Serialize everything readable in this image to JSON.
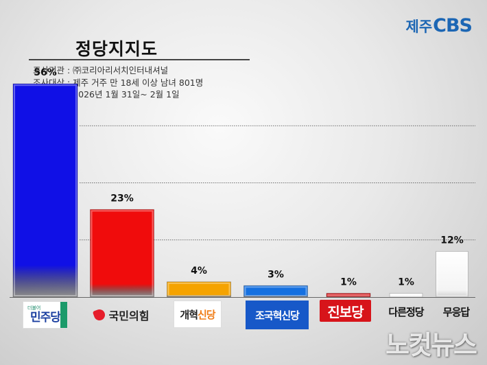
{
  "brand": {
    "prefix": "제주",
    "name": "CBS"
  },
  "title": "정당지지도",
  "survey": {
    "agency": "조사기관 : ㈜코리아리서치인터내셔널",
    "target": "조사대상 : 제주 거주 만 18세 이상 남녀 801명",
    "period": "조사기간 : 2026년 1월 31일~ 2월 1일"
  },
  "parties": {
    "minjoo_small": "더불어",
    "minjoo_large": "민주당",
    "ppp": "국민의힘",
    "reform_a": "개혁",
    "reform_b": "신당",
    "rebuild": "조국혁신당",
    "progress": "진보당",
    "other": "다른정당",
    "none": "무응답"
  },
  "watermark": "노컷뉴스",
  "colors": {
    "minjoo": "#1010e6",
    "ppp": "#f00c0c",
    "reform": "#f5a300",
    "rebuild": "#1570e0",
    "progress": "#d41418",
    "other": "#ffffff",
    "none": "#ffffff"
  },
  "chart_data": {
    "type": "bar",
    "title": "정당지지도",
    "categories": [
      "더불어민주당",
      "국민의힘",
      "개혁신당",
      "조국혁신당",
      "진보당",
      "다른정당",
      "무응답"
    ],
    "values": [
      56,
      23,
      4,
      3,
      1,
      1,
      12
    ],
    "value_labels": [
      "56%",
      "23%",
      "4%",
      "3%",
      "1%",
      "1%",
      "12%"
    ],
    "ylim": [
      0,
      60
    ],
    "grid": true
  }
}
